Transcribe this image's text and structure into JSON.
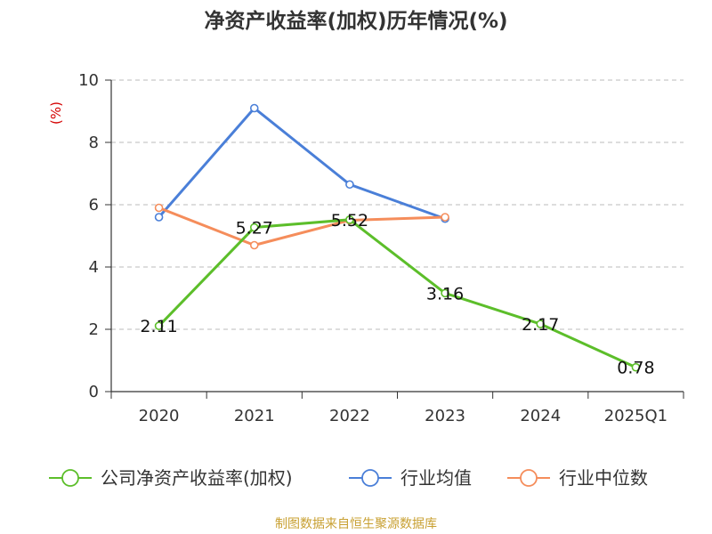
{
  "chart_data": {
    "type": "line",
    "title": "净资产收益率(加权)历年情况(%)",
    "ylabel": "(%)",
    "xlabel": "",
    "categories": [
      "2020",
      "2021",
      "2022",
      "2023",
      "2024",
      "2025Q1"
    ],
    "ylim": [
      0,
      10
    ],
    "yticks": [
      0,
      2,
      4,
      6,
      8,
      10
    ],
    "grid": true,
    "legend_position": "bottom",
    "series": [
      {
        "name": "公司净资产收益率(加权)",
        "color": "#5cbe2a",
        "values": [
          2.11,
          5.27,
          5.52,
          3.16,
          2.17,
          0.78
        ],
        "labels": [
          "2.11",
          "5.27",
          "5.52",
          "3.16",
          "2.17",
          "0.78"
        ]
      },
      {
        "name": "行业均值",
        "color": "#4a7fd8",
        "values": [
          5.6,
          9.1,
          6.65,
          5.55,
          null,
          null
        ]
      },
      {
        "name": "行业中位数",
        "color": "#f58d5b",
        "values": [
          5.9,
          4.7,
          5.5,
          5.6,
          null,
          null
        ]
      }
    ]
  },
  "source_note": "制图数据来自恒生聚源数据库"
}
